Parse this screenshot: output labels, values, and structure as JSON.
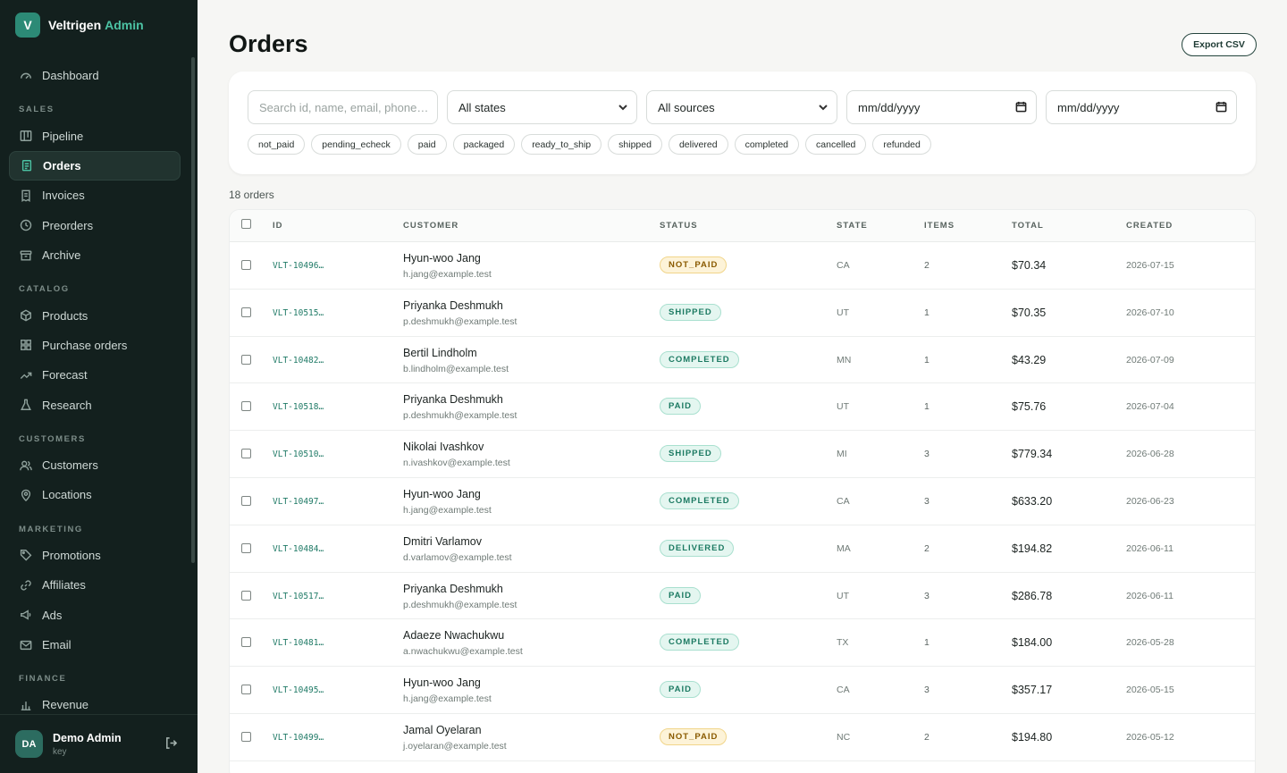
{
  "brand": {
    "logo": "V",
    "name": "Veltrigen",
    "accent": "Admin"
  },
  "nav": [
    {
      "type": "item",
      "label": "Dashboard",
      "icon": "gauge-icon",
      "name": "sidebar-item-dashboard"
    },
    {
      "type": "section",
      "label": "SALES"
    },
    {
      "type": "item",
      "label": "Pipeline",
      "icon": "kanban-icon",
      "name": "sidebar-item-pipeline"
    },
    {
      "type": "item",
      "label": "Orders",
      "icon": "clipboard-icon",
      "name": "sidebar-item-orders",
      "active": true
    },
    {
      "type": "item",
      "label": "Invoices",
      "icon": "invoice-icon",
      "name": "sidebar-item-invoices"
    },
    {
      "type": "item",
      "label": "Preorders",
      "icon": "clock-icon",
      "name": "sidebar-item-preorders"
    },
    {
      "type": "item",
      "label": "Archive",
      "icon": "archive-icon",
      "name": "sidebar-item-archive"
    },
    {
      "type": "section",
      "label": "CATALOG"
    },
    {
      "type": "item",
      "label": "Products",
      "icon": "box-icon",
      "name": "sidebar-item-products"
    },
    {
      "type": "item",
      "label": "Purchase orders",
      "icon": "grid-icon",
      "name": "sidebar-item-purchase-orders"
    },
    {
      "type": "item",
      "label": "Forecast",
      "icon": "trend-icon",
      "name": "sidebar-item-forecast"
    },
    {
      "type": "item",
      "label": "Research",
      "icon": "flask-icon",
      "name": "sidebar-item-research"
    },
    {
      "type": "section",
      "label": "CUSTOMERS"
    },
    {
      "type": "item",
      "label": "Customers",
      "icon": "users-icon",
      "name": "sidebar-item-customers"
    },
    {
      "type": "item",
      "label": "Locations",
      "icon": "pin-icon",
      "name": "sidebar-item-locations"
    },
    {
      "type": "section",
      "label": "MARKETING"
    },
    {
      "type": "item",
      "label": "Promotions",
      "icon": "tag-icon",
      "name": "sidebar-item-promotions"
    },
    {
      "type": "item",
      "label": "Affiliates",
      "icon": "link-icon",
      "name": "sidebar-item-affiliates"
    },
    {
      "type": "item",
      "label": "Ads",
      "icon": "megaphone-icon",
      "name": "sidebar-item-ads"
    },
    {
      "type": "item",
      "label": "Email",
      "icon": "mail-icon",
      "name": "sidebar-item-email"
    },
    {
      "type": "section",
      "label": "FINANCE"
    },
    {
      "type": "item",
      "label": "Revenue",
      "icon": "bar-chart-icon",
      "name": "sidebar-item-revenue"
    }
  ],
  "user": {
    "initials": "DA",
    "name": "Demo Admin",
    "role": "key"
  },
  "page": {
    "title": "Orders",
    "export_label": "Export CSV"
  },
  "filters": {
    "search_placeholder": "Search id, name, email, phone…",
    "state_value": "All states",
    "source_value": "All sources",
    "date_from": "mm/dd/yyyy",
    "date_to": "mm/dd/yyyy",
    "chips": [
      "not_paid",
      "pending_echeck",
      "paid",
      "packaged",
      "ready_to_ship",
      "shipped",
      "delivered",
      "completed",
      "cancelled",
      "refunded"
    ]
  },
  "count_label": "18 orders",
  "columns": [
    "ID",
    "CUSTOMER",
    "STATUS",
    "STATE",
    "ITEMS",
    "TOTAL",
    "CREATED"
  ],
  "status_colors": {
    "NOT_PAID": {
      "bg": "#fdf3d8",
      "border": "#f1d58a",
      "fg": "#8a5a00"
    },
    "SHIPPED": {
      "bg": "#e4f6f0",
      "border": "#a9e0cf",
      "fg": "#1c7a62"
    },
    "COMPLETED": {
      "bg": "#e4f6f0",
      "border": "#a9e0cf",
      "fg": "#1c7a62"
    },
    "PAID": {
      "bg": "#e4f6f0",
      "border": "#a9e0cf",
      "fg": "#1c7a62"
    },
    "DELIVERED": {
      "bg": "#e4f6f0",
      "border": "#a9e0cf",
      "fg": "#1c7a62"
    }
  },
  "orders": [
    {
      "id": "VLT-10496…",
      "name": "Hyun-woo Jang",
      "email": "h.jang@example.test",
      "status": "NOT_PAID",
      "state": "CA",
      "items": "2",
      "total": "$70.34",
      "created": "2026-07-15"
    },
    {
      "id": "VLT-10515…",
      "name": "Priyanka Deshmukh",
      "email": "p.deshmukh@example.test",
      "status": "SHIPPED",
      "state": "UT",
      "items": "1",
      "total": "$70.35",
      "created": "2026-07-10"
    },
    {
      "id": "VLT-10482…",
      "name": "Bertil Lindholm",
      "email": "b.lindholm@example.test",
      "status": "COMPLETED",
      "state": "MN",
      "items": "1",
      "total": "$43.29",
      "created": "2026-07-09"
    },
    {
      "id": "VLT-10518…",
      "name": "Priyanka Deshmukh",
      "email": "p.deshmukh@example.test",
      "status": "PAID",
      "state": "UT",
      "items": "1",
      "total": "$75.76",
      "created": "2026-07-04"
    },
    {
      "id": "VLT-10510…",
      "name": "Nikolai Ivashkov",
      "email": "n.ivashkov@example.test",
      "status": "SHIPPED",
      "state": "MI",
      "items": "3",
      "total": "$779.34",
      "created": "2026-06-28"
    },
    {
      "id": "VLT-10497…",
      "name": "Hyun-woo Jang",
      "email": "h.jang@example.test",
      "status": "COMPLETED",
      "state": "CA",
      "items": "3",
      "total": "$633.20",
      "created": "2026-06-23"
    },
    {
      "id": "VLT-10484…",
      "name": "Dmitri Varlamov",
      "email": "d.varlamov@example.test",
      "status": "DELIVERED",
      "state": "MA",
      "items": "2",
      "total": "$194.82",
      "created": "2026-06-11"
    },
    {
      "id": "VLT-10517…",
      "name": "Priyanka Deshmukh",
      "email": "p.deshmukh@example.test",
      "status": "PAID",
      "state": "UT",
      "items": "3",
      "total": "$286.78",
      "created": "2026-06-11"
    },
    {
      "id": "VLT-10481…",
      "name": "Adaeze Nwachukwu",
      "email": "a.nwachukwu@example.test",
      "status": "COMPLETED",
      "state": "TX",
      "items": "1",
      "total": "$184.00",
      "created": "2026-05-28"
    },
    {
      "id": "VLT-10495…",
      "name": "Hyun-woo Jang",
      "email": "h.jang@example.test",
      "status": "PAID",
      "state": "CA",
      "items": "3",
      "total": "$357.17",
      "created": "2026-05-15"
    },
    {
      "id": "VLT-10499…",
      "name": "Jamal Oyelaran",
      "email": "j.oyelaran@example.test",
      "status": "NOT_PAID",
      "state": "NC",
      "items": "2",
      "total": "$194.80",
      "created": "2026-05-12"
    }
  ]
}
